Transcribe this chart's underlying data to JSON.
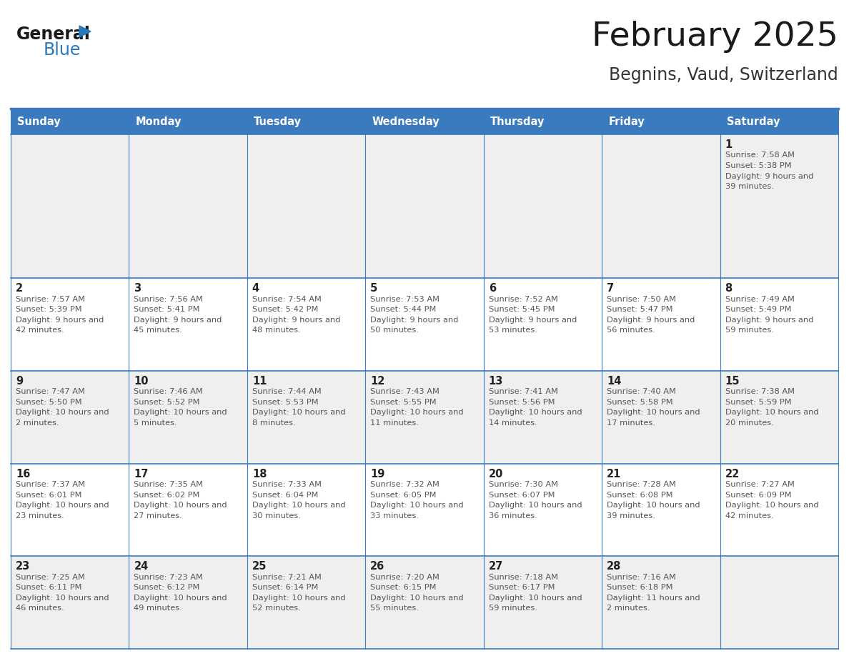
{
  "title": "February 2025",
  "subtitle": "Begnins, Vaud, Switzerland",
  "header_color": "#3a7abf",
  "header_text_color": "#ffffff",
  "day_names": [
    "Sunday",
    "Monday",
    "Tuesday",
    "Wednesday",
    "Thursday",
    "Friday",
    "Saturday"
  ],
  "background_color": "#ffffff",
  "cell_bg_gray": "#efefef",
  "cell_bg_white": "#ffffff",
  "cell_border_color": "#3a7abf",
  "day_number_color": "#222222",
  "sun_text_color": "#555555",
  "logo_general_color": "#1a1a1a",
  "logo_blue_color": "#2878be",
  "days": [
    {
      "date": 1,
      "col": 6,
      "row": 0,
      "sunrise": "7:58 AM",
      "sunset": "5:38 PM",
      "daylight": "9 hours and 39 minutes."
    },
    {
      "date": 2,
      "col": 0,
      "row": 1,
      "sunrise": "7:57 AM",
      "sunset": "5:39 PM",
      "daylight": "9 hours and 42 minutes."
    },
    {
      "date": 3,
      "col": 1,
      "row": 1,
      "sunrise": "7:56 AM",
      "sunset": "5:41 PM",
      "daylight": "9 hours and 45 minutes."
    },
    {
      "date": 4,
      "col": 2,
      "row": 1,
      "sunrise": "7:54 AM",
      "sunset": "5:42 PM",
      "daylight": "9 hours and 48 minutes."
    },
    {
      "date": 5,
      "col": 3,
      "row": 1,
      "sunrise": "7:53 AM",
      "sunset": "5:44 PM",
      "daylight": "9 hours and 50 minutes."
    },
    {
      "date": 6,
      "col": 4,
      "row": 1,
      "sunrise": "7:52 AM",
      "sunset": "5:45 PM",
      "daylight": "9 hours and 53 minutes."
    },
    {
      "date": 7,
      "col": 5,
      "row": 1,
      "sunrise": "7:50 AM",
      "sunset": "5:47 PM",
      "daylight": "9 hours and 56 minutes."
    },
    {
      "date": 8,
      "col": 6,
      "row": 1,
      "sunrise": "7:49 AM",
      "sunset": "5:49 PM",
      "daylight": "9 hours and 59 minutes."
    },
    {
      "date": 9,
      "col": 0,
      "row": 2,
      "sunrise": "7:47 AM",
      "sunset": "5:50 PM",
      "daylight": "10 hours and 2 minutes."
    },
    {
      "date": 10,
      "col": 1,
      "row": 2,
      "sunrise": "7:46 AM",
      "sunset": "5:52 PM",
      "daylight": "10 hours and 5 minutes."
    },
    {
      "date": 11,
      "col": 2,
      "row": 2,
      "sunrise": "7:44 AM",
      "sunset": "5:53 PM",
      "daylight": "10 hours and 8 minutes."
    },
    {
      "date": 12,
      "col": 3,
      "row": 2,
      "sunrise": "7:43 AM",
      "sunset": "5:55 PM",
      "daylight": "10 hours and 11 minutes."
    },
    {
      "date": 13,
      "col": 4,
      "row": 2,
      "sunrise": "7:41 AM",
      "sunset": "5:56 PM",
      "daylight": "10 hours and 14 minutes."
    },
    {
      "date": 14,
      "col": 5,
      "row": 2,
      "sunrise": "7:40 AM",
      "sunset": "5:58 PM",
      "daylight": "10 hours and 17 minutes."
    },
    {
      "date": 15,
      "col": 6,
      "row": 2,
      "sunrise": "7:38 AM",
      "sunset": "5:59 PM",
      "daylight": "10 hours and 20 minutes."
    },
    {
      "date": 16,
      "col": 0,
      "row": 3,
      "sunrise": "7:37 AM",
      "sunset": "6:01 PM",
      "daylight": "10 hours and 23 minutes."
    },
    {
      "date": 17,
      "col": 1,
      "row": 3,
      "sunrise": "7:35 AM",
      "sunset": "6:02 PM",
      "daylight": "10 hours and 27 minutes."
    },
    {
      "date": 18,
      "col": 2,
      "row": 3,
      "sunrise": "7:33 AM",
      "sunset": "6:04 PM",
      "daylight": "10 hours and 30 minutes."
    },
    {
      "date": 19,
      "col": 3,
      "row": 3,
      "sunrise": "7:32 AM",
      "sunset": "6:05 PM",
      "daylight": "10 hours and 33 minutes."
    },
    {
      "date": 20,
      "col": 4,
      "row": 3,
      "sunrise": "7:30 AM",
      "sunset": "6:07 PM",
      "daylight": "10 hours and 36 minutes."
    },
    {
      "date": 21,
      "col": 5,
      "row": 3,
      "sunrise": "7:28 AM",
      "sunset": "6:08 PM",
      "daylight": "10 hours and 39 minutes."
    },
    {
      "date": 22,
      "col": 6,
      "row": 3,
      "sunrise": "7:27 AM",
      "sunset": "6:09 PM",
      "daylight": "10 hours and 42 minutes."
    },
    {
      "date": 23,
      "col": 0,
      "row": 4,
      "sunrise": "7:25 AM",
      "sunset": "6:11 PM",
      "daylight": "10 hours and 46 minutes."
    },
    {
      "date": 24,
      "col": 1,
      "row": 4,
      "sunrise": "7:23 AM",
      "sunset": "6:12 PM",
      "daylight": "10 hours and 49 minutes."
    },
    {
      "date": 25,
      "col": 2,
      "row": 4,
      "sunrise": "7:21 AM",
      "sunset": "6:14 PM",
      "daylight": "10 hours and 52 minutes."
    },
    {
      "date": 26,
      "col": 3,
      "row": 4,
      "sunrise": "7:20 AM",
      "sunset": "6:15 PM",
      "daylight": "10 hours and 55 minutes."
    },
    {
      "date": 27,
      "col": 4,
      "row": 4,
      "sunrise": "7:18 AM",
      "sunset": "6:17 PM",
      "daylight": "10 hours and 59 minutes."
    },
    {
      "date": 28,
      "col": 5,
      "row": 4,
      "sunrise": "7:16 AM",
      "sunset": "6:18 PM",
      "daylight": "11 hours and 2 minutes."
    }
  ]
}
